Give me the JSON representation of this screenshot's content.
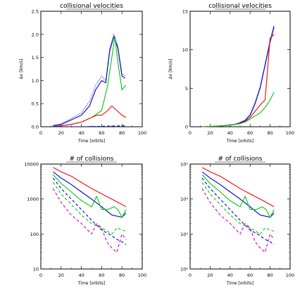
{
  "chart_data": [
    {
      "type": "line",
      "title": "collisional velocities",
      "xlabel": "Time [orbits]",
      "ylabel": "Δv [km/s]",
      "xlim": [
        0,
        100
      ],
      "ylim": [
        0,
        2.5
      ],
      "yscale": "linear",
      "xticks": [
        "0",
        "20",
        "40",
        "60",
        "80",
        "100"
      ],
      "yticks": [
        "0.0",
        "0.5",
        "1.0",
        "1.5",
        "2.0",
        "2.5"
      ],
      "series": [
        {
          "color": "#0000cc",
          "style": "solid",
          "x": [
            12,
            20,
            30,
            40,
            48,
            54,
            60,
            64,
            68,
            72,
            76,
            80,
            83
          ],
          "y": [
            0.02,
            0.05,
            0.15,
            0.25,
            0.45,
            0.8,
            1.0,
            0.95,
            1.65,
            1.95,
            1.7,
            1.1,
            1.05
          ]
        },
        {
          "color": "#0000cc",
          "style": "dotted",
          "x": [
            12,
            20,
            30,
            40,
            48,
            54,
            60,
            64,
            68,
            72,
            76,
            80,
            83
          ],
          "y": [
            0.03,
            0.06,
            0.18,
            0.3,
            0.55,
            0.9,
            1.1,
            1.0,
            1.7,
            2.0,
            1.75,
            1.15,
            1.1
          ]
        },
        {
          "color": "#00cc00",
          "style": "solid",
          "x": [
            12,
            20,
            30,
            40,
            50,
            60,
            66,
            70,
            73,
            76,
            80,
            84
          ],
          "y": [
            0.01,
            0.02,
            0.05,
            0.1,
            0.2,
            0.35,
            0.9,
            1.5,
            1.95,
            1.4,
            0.8,
            0.9
          ]
        },
        {
          "color": "#ff0000",
          "style": "solid",
          "x": [
            12,
            20,
            30,
            40,
            50,
            55,
            60,
            66,
            70,
            75,
            80,
            84
          ],
          "y": [
            0.0,
            0.02,
            0.05,
            0.1,
            0.2,
            0.25,
            0.25,
            0.35,
            0.45,
            0.35,
            0.25,
            0.2
          ]
        },
        {
          "color": "#0000cc",
          "style": "dashed",
          "x": [
            12,
            40,
            80,
            84
          ],
          "y": [
            0.0,
            0.0,
            0.02,
            0.02
          ]
        }
      ]
    },
    {
      "type": "line",
      "title": "collisional velocities",
      "xlabel": "Time [orbits]",
      "ylabel": "Δv [km/s]",
      "xlim": [
        0,
        100
      ],
      "ylim": [
        0,
        15
      ],
      "yscale": "linear",
      "xticks": [
        "0",
        "20",
        "40",
        "60",
        "80",
        "100"
      ],
      "yticks": [
        "0",
        "5",
        "10",
        "15"
      ],
      "series": [
        {
          "color": "#0000cc",
          "style": "solid",
          "x": [
            12,
            20,
            30,
            40,
            45,
            50,
            55,
            60,
            65,
            70,
            75,
            80,
            84
          ],
          "y": [
            0.0,
            0.05,
            0.1,
            0.2,
            0.3,
            0.5,
            0.8,
            1.5,
            3.0,
            5.0,
            8.0,
            11.0,
            13.0
          ]
        },
        {
          "color": "#0000cc",
          "style": "dotted",
          "x": [
            12,
            20,
            30,
            40,
            45,
            50,
            55,
            60,
            65,
            70,
            75,
            80,
            84
          ],
          "y": [
            0.0,
            0.05,
            0.12,
            0.25,
            0.35,
            0.6,
            0.9,
            1.6,
            3.2,
            5.2,
            8.2,
            11.3,
            13.3
          ]
        },
        {
          "color": "#ff0000",
          "style": "solid",
          "x": [
            12,
            20,
            30,
            40,
            45,
            50,
            55,
            60,
            65,
            70,
            75,
            80,
            84
          ],
          "y": [
            0.0,
            0.05,
            0.1,
            0.2,
            0.3,
            0.4,
            0.7,
            1.2,
            2.0,
            2.8,
            3.5,
            11.5,
            12.0
          ]
        },
        {
          "color": "#00cc00",
          "style": "solid",
          "x": [
            12,
            20,
            30,
            40,
            45,
            50,
            55,
            60,
            65,
            70,
            75,
            80,
            84
          ],
          "y": [
            0.0,
            0.05,
            0.1,
            0.2,
            0.3,
            0.4,
            0.6,
            1.0,
            1.4,
            1.8,
            2.5,
            3.5,
            4.5
          ]
        }
      ]
    },
    {
      "type": "line",
      "title": "# of collisions",
      "xlabel": "Time [orbits]",
      "ylabel": "",
      "xlim": [
        0,
        100
      ],
      "ylim": [
        10,
        10000
      ],
      "yscale": "log",
      "xticks": [
        "0",
        "20",
        "40",
        "60",
        "80",
        "100"
      ],
      "yticks": [
        "10",
        "100",
        "1000",
        "10000"
      ],
      "series": [
        {
          "color": "#ff0000",
          "style": "solid",
          "x": [
            12,
            20,
            30,
            40,
            50,
            60,
            70,
            80,
            84
          ],
          "y": [
            8000,
            6000,
            4500,
            3000,
            2000,
            1400,
            1000,
            700,
            600
          ]
        },
        {
          "color": "#0000cc",
          "style": "solid",
          "x": [
            12,
            20,
            30,
            40,
            50,
            60,
            70,
            80,
            84
          ],
          "y": [
            6000,
            4000,
            2600,
            1600,
            1000,
            600,
            350,
            300,
            400
          ]
        },
        {
          "color": "#00cc00",
          "style": "solid",
          "x": [
            12,
            20,
            30,
            40,
            50,
            55,
            60,
            66,
            72,
            76,
            80,
            84
          ],
          "y": [
            5000,
            2800,
            1600,
            900,
            600,
            1200,
            500,
            500,
            600,
            500,
            300,
            500
          ]
        },
        {
          "color": "#0000cc",
          "style": "dashed",
          "x": [
            12,
            20,
            30,
            40,
            50,
            60,
            70,
            75,
            80,
            84
          ],
          "y": [
            4000,
            2000,
            1000,
            500,
            250,
            130,
            90,
            70,
            60,
            50
          ]
        },
        {
          "color": "#00cc00",
          "style": "dashed",
          "x": [
            12,
            20,
            30,
            40,
            50,
            60,
            70,
            75,
            80,
            84
          ],
          "y": [
            3000,
            1400,
            700,
            350,
            200,
            150,
            100,
            150,
            130,
            120
          ]
        },
        {
          "color": "#cc00cc",
          "style": "dashed",
          "x": [
            12,
            20,
            30,
            40,
            50,
            55,
            60,
            65,
            70,
            75,
            80,
            84
          ],
          "y": [
            2000,
            800,
            350,
            200,
            100,
            200,
            150,
            60,
            40,
            30,
            100,
            70
          ]
        }
      ]
    },
    {
      "type": "line",
      "title": "# of collisions",
      "xlabel": "Time [orbits]",
      "ylabel": "",
      "xlim": [
        0,
        100
      ],
      "ylim": [
        100,
        100000
      ],
      "yscale": "log",
      "xticks": [
        "0",
        "20",
        "40",
        "60",
        "80",
        "100"
      ],
      "yticks": [
        "10²",
        "10³",
        "10⁴",
        "10⁵"
      ],
      "series": [
        {
          "color": "#ff0000",
          "style": "solid",
          "x": [
            12,
            20,
            30,
            40,
            50,
            60,
            70,
            80,
            84
          ],
          "y": [
            80000,
            60000,
            45000,
            30000,
            20000,
            14000,
            10000,
            7000,
            6000
          ]
        },
        {
          "color": "#0000cc",
          "style": "solid",
          "x": [
            12,
            20,
            30,
            40,
            50,
            60,
            70,
            80,
            84
          ],
          "y": [
            60000,
            40000,
            26000,
            16000,
            10000,
            6000,
            3500,
            3000,
            4000
          ]
        },
        {
          "color": "#00cc00",
          "style": "solid",
          "x": [
            12,
            20,
            30,
            40,
            50,
            55,
            60,
            66,
            72,
            76,
            80,
            84
          ],
          "y": [
            50000,
            28000,
            16000,
            9000,
            6000,
            12000,
            5000,
            5000,
            6000,
            5000,
            3000,
            5000
          ]
        },
        {
          "color": "#0000cc",
          "style": "dashed",
          "x": [
            12,
            20,
            30,
            40,
            50,
            60,
            70,
            75,
            80,
            84
          ],
          "y": [
            40000,
            20000,
            10000,
            5000,
            2500,
            1300,
            900,
            700,
            600,
            500
          ]
        },
        {
          "color": "#00cc00",
          "style": "dashed",
          "x": [
            12,
            20,
            30,
            40,
            50,
            60,
            70,
            75,
            80,
            84
          ],
          "y": [
            30000,
            14000,
            7000,
            3500,
            2000,
            1500,
            1000,
            1500,
            1300,
            1200
          ]
        },
        {
          "color": "#cc00cc",
          "style": "dashed",
          "x": [
            12,
            20,
            30,
            40,
            50,
            55,
            60,
            65,
            70,
            75,
            80,
            84
          ],
          "y": [
            20000,
            8000,
            3500,
            2000,
            1000,
            2000,
            1500,
            600,
            400,
            300,
            1000,
            700
          ]
        }
      ]
    }
  ]
}
